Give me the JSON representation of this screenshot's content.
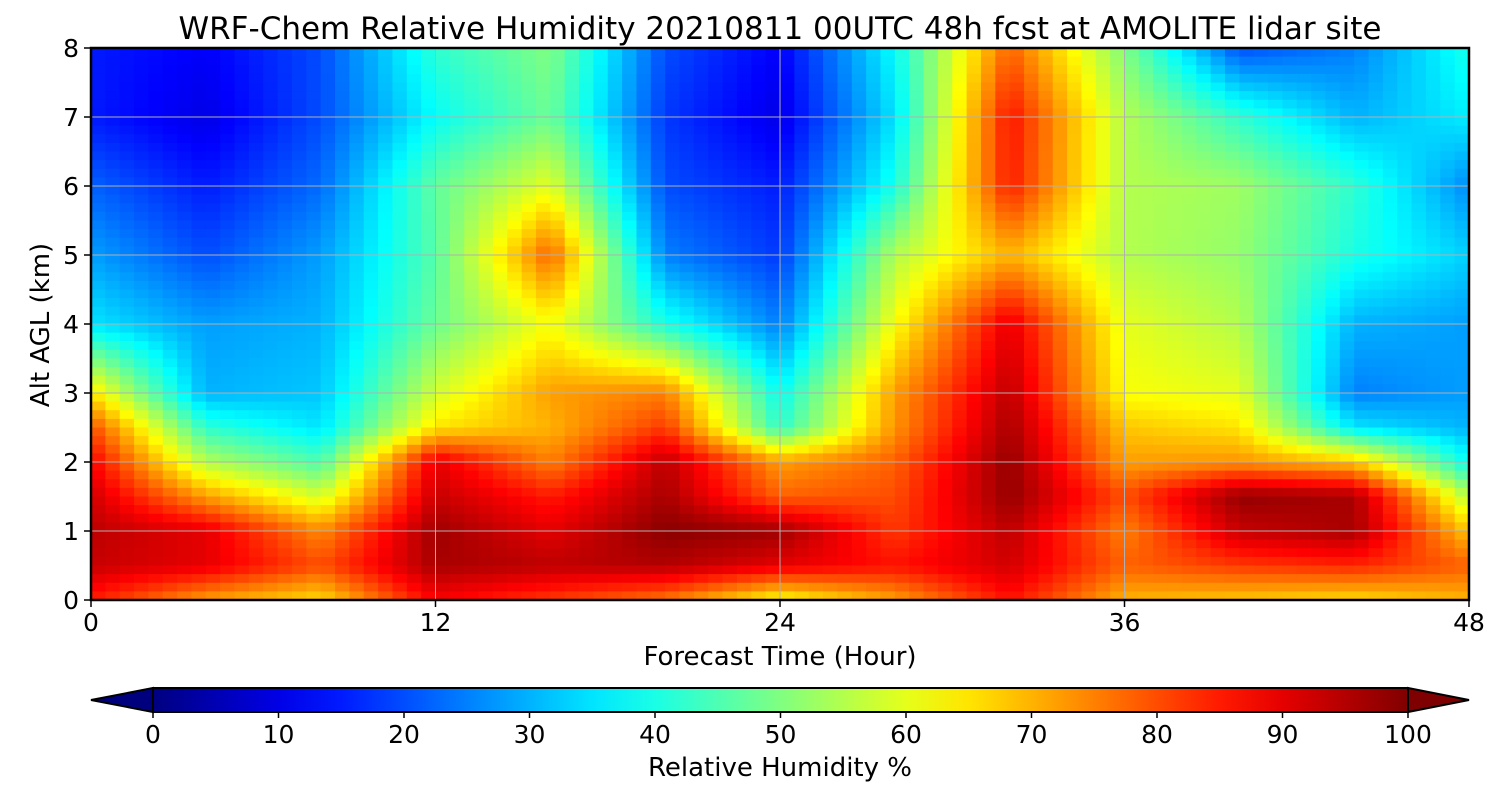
{
  "chart_data": {
    "type": "heatmap",
    "title": "WRF-Chem Relative Humidity 20210811 00UTC 48h fcst at AMOLITE lidar site",
    "xlabel": "Forecast Time (Hour)",
    "ylabel": "Alt AGL (km)",
    "xlim": [
      0,
      48
    ],
    "ylim": [
      0,
      8
    ],
    "x_ticks": [
      "0",
      "12",
      "24",
      "36",
      "48"
    ],
    "y_ticks": [
      "0",
      "1",
      "2",
      "3",
      "4",
      "5",
      "6",
      "7",
      "8"
    ],
    "grid": true,
    "colormap": "jet",
    "colorbar": {
      "label": "Relative Humidity %",
      "ticks": [
        "0",
        "10",
        "20",
        "30",
        "40",
        "50",
        "60",
        "70",
        "80",
        "90",
        "100"
      ],
      "range": [
        0,
        100
      ],
      "extend": "both",
      "orientation": "horizontal"
    },
    "x": [
      0,
      4,
      8,
      12,
      16,
      20,
      24,
      28,
      32,
      36,
      40,
      44,
      48
    ],
    "y": [
      0,
      0.5,
      1,
      1.5,
      2,
      2.5,
      3,
      4,
      5,
      6,
      7,
      8
    ],
    "z": [
      [
        85,
        72,
        66,
        88,
        82,
        76,
        62,
        72,
        86,
        70,
        68,
        66,
        70
      ],
      [
        93,
        90,
        80,
        96,
        94,
        95,
        90,
        86,
        92,
        78,
        82,
        84,
        78
      ],
      [
        94,
        90,
        74,
        97,
        90,
        99,
        97,
        82,
        94,
        75,
        93,
        96,
        68
      ],
      [
        92,
        72,
        58,
        93,
        85,
        96,
        78,
        80,
        98,
        80,
        98,
        96,
        55
      ],
      [
        88,
        55,
        45,
        90,
        75,
        94,
        72,
        78,
        98,
        72,
        73,
        68,
        38
      ],
      [
        80,
        42,
        35,
        65,
        70,
        82,
        42,
        73,
        96,
        68,
        65,
        35,
        30
      ],
      [
        65,
        30,
        32,
        58,
        72,
        75,
        38,
        72,
        94,
        62,
        60,
        25,
        28
      ],
      [
        35,
        28,
        30,
        48,
        62,
        40,
        25,
        62,
        90,
        60,
        55,
        30,
        28
      ],
      [
        28,
        20,
        28,
        46,
        78,
        25,
        18,
        55,
        70,
        55,
        52,
        40,
        33
      ],
      [
        22,
        15,
        23,
        47,
        60,
        20,
        15,
        40,
        85,
        55,
        53,
        42,
        26
      ],
      [
        15,
        10,
        20,
        38,
        48,
        18,
        10,
        35,
        86,
        55,
        42,
        30,
        36
      ],
      [
        15,
        12,
        20,
        42,
        50,
        20,
        12,
        38,
        78,
        50,
        20,
        25,
        40
      ]
    ]
  }
}
